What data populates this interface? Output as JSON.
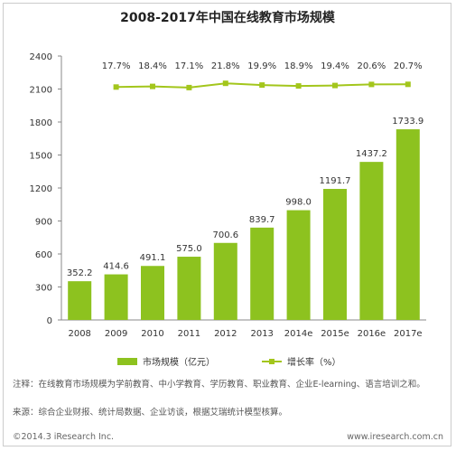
{
  "chart_data": {
    "type": "bar",
    "title": "2008-2017年中国在线教育市场规模",
    "categories": [
      "2008",
      "2009",
      "2010",
      "2011",
      "2012",
      "2013",
      "2014e",
      "2015e",
      "2016e",
      "2017e"
    ],
    "series": [
      {
        "name": "市场规模（亿元）",
        "color": "#8dc21f",
        "values": [
          352.2,
          414.6,
          491.1,
          575.0,
          700.6,
          839.7,
          998.0,
          1191.7,
          1437.2,
          1733.9
        ],
        "value_labels": [
          "352.2",
          "414.6",
          "491.1",
          "575.0",
          "700.6",
          "839.7",
          "998.0",
          "1191.7",
          "1437.2",
          "1733.9"
        ]
      },
      {
        "name": "增长率（%）",
        "type": "line",
        "axis": "y2",
        "color": "#a3c61c",
        "values": [
          null,
          17.7,
          18.4,
          17.1,
          21.8,
          19.9,
          18.9,
          19.4,
          20.6,
          20.7
        ],
        "value_labels": [
          null,
          "17.7%",
          "18.4%",
          "17.1%",
          "21.8%",
          "19.9%",
          "18.9%",
          "19.4%",
          "20.6%",
          "20.7%"
        ]
      }
    ],
    "ylim": [
      0,
      2400
    ],
    "yticks": [
      0,
      300,
      600,
      900,
      1200,
      1500,
      1800,
      2100,
      2400
    ],
    "y2lim": [
      -240,
      52
    ]
  },
  "notes": [
    "注释：在线教育市场规模为学前教育、中小学教育、学历教育、职业教育、企业E-learning、语言培训之和。",
    "来源：综合企业财报、统计局数据、企业访谈，根据艾瑞统计模型核算。"
  ],
  "footer": {
    "left": "©2014.3 iResearch Inc.",
    "right": "www.iresearch.com.cn"
  }
}
